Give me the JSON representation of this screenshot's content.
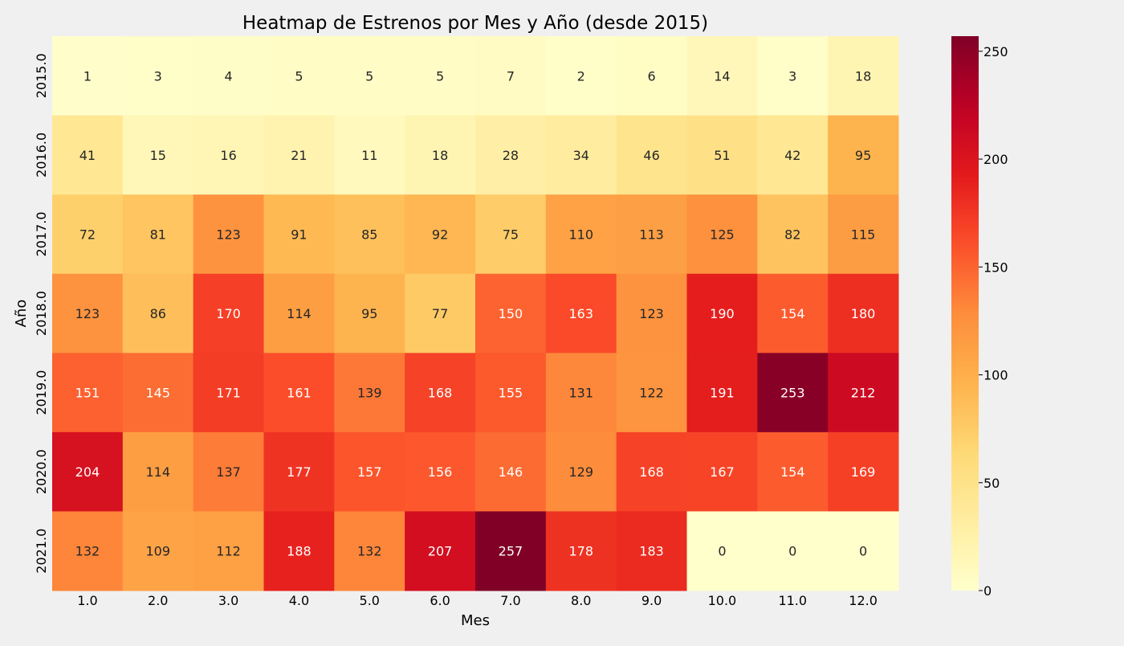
{
  "chart_data": {
    "type": "heatmap",
    "title": "Heatmap de Estrenos por Mes y Año (desde 2015)",
    "xlabel": "Mes",
    "ylabel": "Año",
    "x_categories": [
      "1.0",
      "2.0",
      "3.0",
      "4.0",
      "5.0",
      "6.0",
      "7.0",
      "8.0",
      "9.0",
      "10.0",
      "11.0",
      "12.0"
    ],
    "y_categories": [
      "2015.0",
      "2016.0",
      "2017.0",
      "2018.0",
      "2019.0",
      "2020.0",
      "2021.0"
    ],
    "values": [
      [
        1,
        3,
        4,
        5,
        5,
        5,
        7,
        2,
        6,
        14,
        3,
        18
      ],
      [
        41,
        15,
        16,
        21,
        11,
        18,
        28,
        34,
        46,
        51,
        42,
        95
      ],
      [
        72,
        81,
        123,
        91,
        85,
        92,
        75,
        110,
        113,
        125,
        82,
        115
      ],
      [
        123,
        86,
        170,
        114,
        95,
        77,
        150,
        163,
        123,
        190,
        154,
        180
      ],
      [
        151,
        145,
        171,
        161,
        139,
        168,
        155,
        131,
        122,
        191,
        253,
        212
      ],
      [
        204,
        114,
        137,
        177,
        157,
        156,
        146,
        129,
        168,
        167,
        154,
        169
      ],
      [
        132,
        109,
        112,
        188,
        132,
        207,
        257,
        178,
        183,
        0,
        0,
        0
      ]
    ],
    "colormap": "YlOrRd",
    "vmin": 0,
    "vmax": 257,
    "colorbar_ticks": [
      0,
      50,
      100,
      150,
      200,
      250
    ],
    "annotations": true,
    "grid": false
  }
}
